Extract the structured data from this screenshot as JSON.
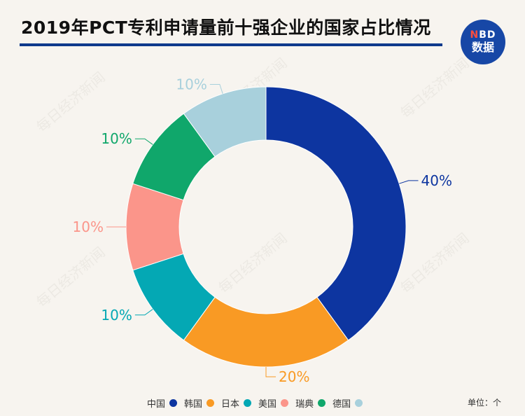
{
  "title": "2019年PCT专利申请量前十强企业的国家占比情况",
  "logo": {
    "line1_n": "N",
    "line1_rest": "BD",
    "line2": "数据"
  },
  "watermark_text": "每日经济新闻",
  "unit": "单位：个",
  "chart_data": {
    "type": "pie",
    "variant": "donut",
    "title": "2019年PCT专利申请量前十强企业的国家占比情况",
    "legend_position": "bottom",
    "slices": [
      {
        "name": "中国",
        "value": 40,
        "label": "40%",
        "color": "#0d35a0"
      },
      {
        "name": "韩国",
        "value": 20,
        "label": "20%",
        "color": "#f99a24"
      },
      {
        "name": "日本",
        "value": 10,
        "label": "10%",
        "color": "#04a8b4"
      },
      {
        "name": "美国",
        "value": 10,
        "label": "10%",
        "color": "#fb958a"
      },
      {
        "name": "瑞典",
        "value": 10,
        "label": "10%",
        "color": "#10a76b"
      },
      {
        "name": "德国",
        "value": 10,
        "label": "10%",
        "color": "#a8d0dc"
      }
    ]
  }
}
